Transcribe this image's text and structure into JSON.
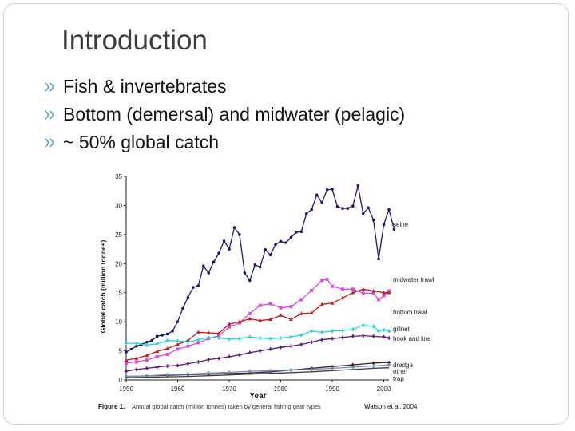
{
  "slide": {
    "title": "Introduction",
    "bullets": [
      "Fish & invertebrates",
      "Bottom (demersal) and midwater (pelagic)",
      "~ 50% global catch"
    ]
  },
  "figure": {
    "caption_prefix": "Figure 1.",
    "caption_text": "Annual global catch (million tonnes) taken by general fishing gear types",
    "credit": "Watson et al. 2004"
  },
  "chart_data": {
    "type": "line",
    "title": "",
    "xlabel": "Year",
    "ylabel": "Global catch (million tonnes)",
    "xlim": [
      1950,
      2001
    ],
    "ylim": [
      0,
      35
    ],
    "xticks": [
      1950,
      1960,
      1970,
      1980,
      1990,
      2000
    ],
    "yticks": [
      0,
      5,
      10,
      15,
      20,
      25,
      30,
      35
    ],
    "ytick_labels": [
      "0",
      "5",
      "10",
      "15",
      "20",
      "25",
      "30",
      "35"
    ],
    "series": [
      {
        "name": "seine",
        "color": "#1a1a6e",
        "marker": "circle",
        "points": [
          [
            1950,
            4.8
          ],
          [
            1951,
            5.3
          ],
          [
            1952,
            5.8
          ],
          [
            1953,
            6.1
          ],
          [
            1954,
            6.5
          ],
          [
            1955,
            6.8
          ],
          [
            1956,
            7.5
          ],
          [
            1957,
            7.7
          ],
          [
            1958,
            7.9
          ],
          [
            1959,
            8.4
          ],
          [
            1960,
            10.0
          ],
          [
            1961,
            12.3
          ],
          [
            1962,
            14.2
          ],
          [
            1963,
            15.9
          ],
          [
            1964,
            16.2
          ],
          [
            1965,
            19.6
          ],
          [
            1966,
            18.4
          ],
          [
            1967,
            20.3
          ],
          [
            1968,
            21.8
          ],
          [
            1969,
            23.9
          ],
          [
            1970,
            22.5
          ],
          [
            1971,
            26.2
          ],
          [
            1972,
            25.0
          ],
          [
            1973,
            18.4
          ],
          [
            1974,
            17.1
          ],
          [
            1975,
            19.8
          ],
          [
            1976,
            19.4
          ],
          [
            1977,
            22.4
          ],
          [
            1978,
            21.5
          ],
          [
            1979,
            23.3
          ],
          [
            1980,
            23.8
          ],
          [
            1981,
            23.6
          ],
          [
            1982,
            24.5
          ],
          [
            1983,
            25.4
          ],
          [
            1984,
            25.5
          ],
          [
            1985,
            28.6
          ],
          [
            1986,
            29.3
          ],
          [
            1987,
            31.8
          ],
          [
            1988,
            30.5
          ],
          [
            1989,
            32.7
          ],
          [
            1990,
            32.8
          ],
          [
            1991,
            29.8
          ],
          [
            1992,
            29.5
          ],
          [
            1993,
            29.5
          ],
          [
            1994,
            29.9
          ],
          [
            1995,
            33.4
          ],
          [
            1996,
            28.6
          ],
          [
            1997,
            29.6
          ],
          [
            1998,
            27.5
          ],
          [
            1999,
            20.8
          ],
          [
            2000,
            26.7
          ],
          [
            2001,
            29.3
          ],
          [
            2002,
            25.9
          ]
        ]
      },
      {
        "name": "midwater trawl",
        "color": "#d94be0",
        "marker": "square",
        "points": [
          [
            1950,
            2.9
          ],
          [
            1952,
            3.1
          ],
          [
            1954,
            3.4
          ],
          [
            1956,
            4.0
          ],
          [
            1958,
            4.4
          ],
          [
            1960,
            5.3
          ],
          [
            1962,
            5.8
          ],
          [
            1964,
            6.4
          ],
          [
            1966,
            7.1
          ],
          [
            1968,
            7.6
          ],
          [
            1970,
            9.1
          ],
          [
            1972,
            9.8
          ],
          [
            1974,
            11.4
          ],
          [
            1976,
            12.8
          ],
          [
            1978,
            13.1
          ],
          [
            1980,
            12.4
          ],
          [
            1982,
            12.6
          ],
          [
            1984,
            13.8
          ],
          [
            1986,
            15.4
          ],
          [
            1988,
            17.1
          ],
          [
            1989,
            17.3
          ],
          [
            1990,
            16.1
          ],
          [
            1992,
            15.6
          ],
          [
            1994,
            15.6
          ],
          [
            1996,
            14.9
          ],
          [
            1998,
            14.9
          ],
          [
            1999,
            13.8
          ],
          [
            2000,
            14.5
          ],
          [
            2001,
            15.3
          ]
        ]
      },
      {
        "name": "bottom trawl",
        "color": "#c21c1c",
        "marker": "triangle",
        "points": [
          [
            1950,
            3.4
          ],
          [
            1952,
            3.7
          ],
          [
            1954,
            4.2
          ],
          [
            1956,
            4.9
          ],
          [
            1958,
            5.4
          ],
          [
            1960,
            6.1
          ],
          [
            1962,
            6.8
          ],
          [
            1964,
            8.2
          ],
          [
            1966,
            8.1
          ],
          [
            1968,
            8.0
          ],
          [
            1970,
            9.6
          ],
          [
            1972,
            10.0
          ],
          [
            1974,
            10.5
          ],
          [
            1976,
            10.2
          ],
          [
            1978,
            10.4
          ],
          [
            1980,
            11.1
          ],
          [
            1982,
            10.4
          ],
          [
            1984,
            11.4
          ],
          [
            1986,
            11.5
          ],
          [
            1988,
            13.0
          ],
          [
            1990,
            13.2
          ],
          [
            1992,
            14.1
          ],
          [
            1994,
            15.0
          ],
          [
            1996,
            15.6
          ],
          [
            1998,
            15.3
          ],
          [
            2000,
            15.0
          ],
          [
            2001,
            15.0
          ]
        ]
      },
      {
        "name": "gillnet",
        "color": "#2bd4d4",
        "marker": "star",
        "points": [
          [
            1950,
            6.3
          ],
          [
            1952,
            6.3
          ],
          [
            1954,
            6.0
          ],
          [
            1956,
            6.2
          ],
          [
            1958,
            6.8
          ],
          [
            1960,
            6.7
          ],
          [
            1962,
            6.5
          ],
          [
            1964,
            6.9
          ],
          [
            1966,
            7.3
          ],
          [
            1968,
            7.2
          ],
          [
            1970,
            7.0
          ],
          [
            1972,
            7.1
          ],
          [
            1974,
            7.4
          ],
          [
            1976,
            7.2
          ],
          [
            1978,
            7.1
          ],
          [
            1980,
            7.2
          ],
          [
            1982,
            7.4
          ],
          [
            1984,
            7.7
          ],
          [
            1986,
            8.4
          ],
          [
            1988,
            8.2
          ],
          [
            1990,
            8.4
          ],
          [
            1992,
            8.5
          ],
          [
            1994,
            8.7
          ],
          [
            1996,
            9.4
          ],
          [
            1998,
            9.2
          ],
          [
            1999,
            8.4
          ],
          [
            2000,
            8.6
          ],
          [
            2001,
            8.4
          ]
        ]
      },
      {
        "name": "hook and line",
        "color": "#5c1a78",
        "marker": "star",
        "points": [
          [
            1950,
            1.5
          ],
          [
            1952,
            1.8
          ],
          [
            1954,
            2.0
          ],
          [
            1956,
            2.2
          ],
          [
            1958,
            2.4
          ],
          [
            1960,
            2.5
          ],
          [
            1962,
            2.8
          ],
          [
            1964,
            3.1
          ],
          [
            1966,
            3.5
          ],
          [
            1968,
            3.7
          ],
          [
            1970,
            4.0
          ],
          [
            1972,
            4.3
          ],
          [
            1974,
            4.7
          ],
          [
            1976,
            5.0
          ],
          [
            1978,
            5.3
          ],
          [
            1980,
            5.6
          ],
          [
            1982,
            5.8
          ],
          [
            1984,
            6.1
          ],
          [
            1986,
            6.5
          ],
          [
            1988,
            6.9
          ],
          [
            1990,
            7.1
          ],
          [
            1992,
            7.3
          ],
          [
            1994,
            7.5
          ],
          [
            1996,
            7.6
          ],
          [
            1998,
            7.5
          ],
          [
            2000,
            7.4
          ],
          [
            2001,
            7.2
          ]
        ]
      },
      {
        "name": "dredge",
        "color": "#4a1a1a",
        "marker": "diamond",
        "points": [
          [
            1950,
            0.6
          ],
          [
            1954,
            0.7
          ],
          [
            1958,
            0.8
          ],
          [
            1962,
            0.9
          ],
          [
            1966,
            1.0
          ],
          [
            1970,
            1.1
          ],
          [
            1974,
            1.2
          ],
          [
            1978,
            1.4
          ],
          [
            1982,
            1.7
          ],
          [
            1986,
            2.0
          ],
          [
            1990,
            2.3
          ],
          [
            1994,
            2.6
          ],
          [
            1998,
            2.9
          ],
          [
            2001,
            3.0
          ]
        ]
      },
      {
        "name": "other",
        "color": "#6a8fc0",
        "marker": "plus",
        "points": [
          [
            1950,
            0.6
          ],
          [
            1954,
            0.7
          ],
          [
            1958,
            0.9
          ],
          [
            1962,
            1.0
          ],
          [
            1966,
            1.2
          ],
          [
            1970,
            1.3
          ],
          [
            1974,
            1.5
          ],
          [
            1978,
            1.6
          ],
          [
            1982,
            1.7
          ],
          [
            1986,
            1.8
          ],
          [
            1990,
            2.0
          ],
          [
            1994,
            2.2
          ],
          [
            1998,
            2.4
          ],
          [
            2001,
            2.6
          ]
        ]
      },
      {
        "name": "trap",
        "color": "#3a3a3a",
        "marker": "none",
        "points": [
          [
            1950,
            0.4
          ],
          [
            1956,
            0.5
          ],
          [
            1962,
            0.6
          ],
          [
            1968,
            0.8
          ],
          [
            1974,
            1.0
          ],
          [
            1980,
            1.2
          ],
          [
            1986,
            1.4
          ],
          [
            1992,
            1.7
          ],
          [
            1998,
            2.0
          ],
          [
            2001,
            2.1
          ]
        ]
      }
    ]
  }
}
